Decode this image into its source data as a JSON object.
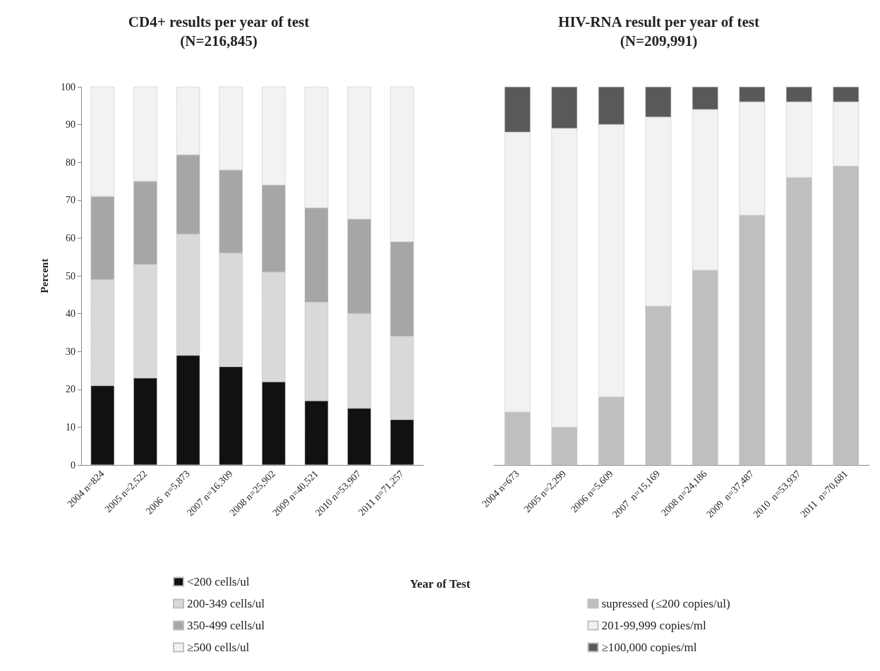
{
  "chart_data": [
    {
      "type": "bar",
      "title": "CD4+ results per year of test",
      "subtitle": "(N=216,845)",
      "ylabel": "Percent",
      "xlabel": "Year of Test",
      "stacked": true,
      "categories": [
        "2004 n=824",
        "2005 n=2,522",
        "2006  n=5,873",
        "2007 n=16,309",
        "2008 n=25,902",
        "2009 n=40,521",
        "2010 n=53,907",
        "2011 n=71,257"
      ],
      "series": [
        {
          "name": "<200 cells/ul",
          "color": "#111111",
          "values": [
            21,
            23,
            29,
            26,
            22,
            17,
            15,
            12
          ]
        },
        {
          "name": "200-349 cells/ul",
          "color": "#d9d9d9",
          "values": [
            28,
            30,
            32,
            30,
            29,
            26,
            25,
            22
          ]
        },
        {
          "name": "350-499 cells/ul",
          "color": "#a6a6a6",
          "values": [
            22,
            22,
            21,
            22,
            23,
            25,
            25,
            25
          ]
        },
        {
          "name": "≥500 cells/ul",
          "color": "#f2f2f2",
          "values": [
            29,
            25,
            18,
            22,
            26,
            32,
            35,
            41
          ]
        }
      ],
      "ylim": [
        0,
        100
      ],
      "yticks": [
        0,
        10,
        20,
        30,
        40,
        50,
        60,
        70,
        80,
        90,
        100
      ],
      "grid": false,
      "legend": "bottom"
    },
    {
      "type": "bar",
      "title": "HIV-RNA result per year of test",
      "subtitle": "(N=209,991)",
      "stacked": true,
      "categories": [
        "2004 n=673",
        "2005 n=2,299",
        "2006 n=5,609",
        "2007  n=15,169",
        "2008 n=24,186",
        "2009  n=37,487",
        "2010  n=53,937",
        "2011  n=70,681"
      ],
      "series": [
        {
          "name": "supressed (≤200 copies/ul)",
          "color": "#bfbfbf",
          "values": [
            14,
            10,
            18,
            42,
            51.5,
            66,
            76,
            79
          ]
        },
        {
          "name": "201-99,999 copies/ml",
          "color": "#f2f2f2",
          "values": [
            74,
            79,
            72,
            50,
            42.5,
            30,
            20,
            17
          ]
        },
        {
          "name": "≥100,000 copies/ml",
          "color": "#595959",
          "values": [
            12,
            11,
            10,
            8,
            6,
            4,
            4,
            4
          ]
        }
      ],
      "ylim": [
        0,
        100
      ],
      "tick_labels": "x",
      "grid": false,
      "legend": "bottom"
    }
  ]
}
